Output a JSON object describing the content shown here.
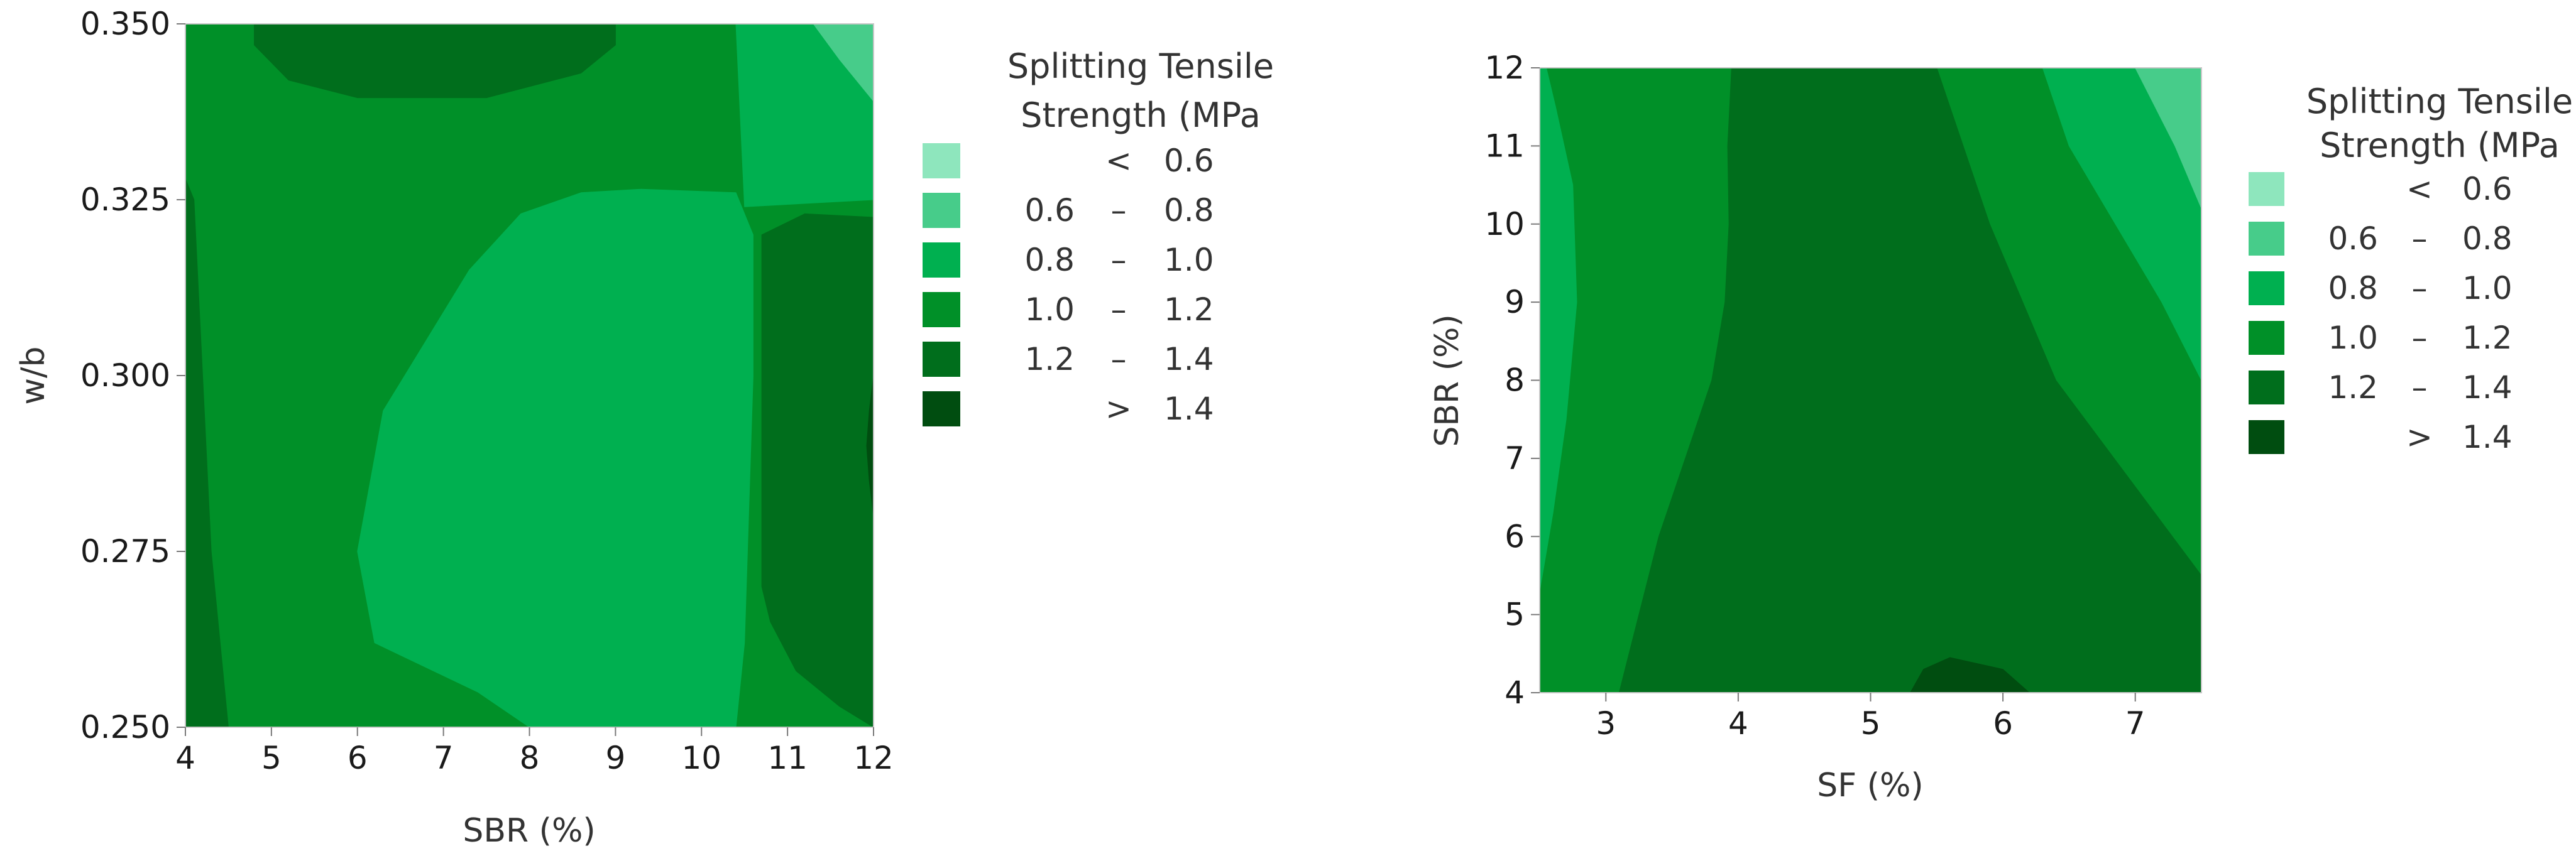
{
  "chart_data": [
    {
      "type": "contour",
      "xlabel": "SBR (%)",
      "ylabel": "w/b",
      "xlim": [
        4,
        12
      ],
      "ylim": [
        0.25,
        0.35
      ],
      "x_ticks": [
        "4",
        "5",
        "6",
        "7",
        "8",
        "9",
        "10",
        "11",
        "12"
      ],
      "y_ticks": [
        "0.250",
        "0.275",
        "0.300",
        "0.325",
        "0.350"
      ],
      "legend": {
        "title": [
          "Splitting Tensile",
          "Strength (MPa"
        ],
        "placement": "right",
        "items": [
          {
            "low": "",
            "sep": "<",
            "high": "0.6",
            "color": "#8ee6bd"
          },
          {
            "low": "0.6",
            "sep": "–",
            "high": "0.8",
            "color": "#47cc8a"
          },
          {
            "low": "0.8",
            "sep": "–",
            "high": "1.0",
            "color": "#00b050"
          },
          {
            "low": "1.0",
            "sep": "–",
            "high": "1.2",
            "color": "#009028"
          },
          {
            "low": "1.2",
            "sep": "–",
            "high": "1.4",
            "color": "#006e1c"
          },
          {
            "low": "",
            "sep": ">",
            "high": "1.4",
            "color": "#004d10"
          }
        ]
      },
      "regions": [
        {
          "level": "1.0-1.2",
          "color": "#009028",
          "points": [
            [
              4,
              0.25
            ],
            [
              12,
              0.25
            ],
            [
              12,
              0.35
            ],
            [
              4,
              0.35
            ]
          ]
        },
        {
          "level": "1.2-1.4",
          "color": "#006e1c",
          "points": [
            [
              4,
              0.25
            ],
            [
              4.5,
              0.25
            ],
            [
              4.3,
              0.275
            ],
            [
              4.2,
              0.3
            ],
            [
              4.1,
              0.325
            ],
            [
              4,
              0.328
            ]
          ]
        },
        {
          "level": "0.8-1.0",
          "color": "#00b050",
          "points": [
            [
              8,
              0.25
            ],
            [
              10.4,
              0.25
            ],
            [
              10.5,
              0.262
            ],
            [
              10.6,
              0.3
            ],
            [
              10.6,
              0.32
            ],
            [
              10.4,
              0.326
            ],
            [
              9.3,
              0.3265
            ],
            [
              8.6,
              0.326
            ],
            [
              7.9,
              0.323
            ],
            [
              7.3,
              0.315
            ],
            [
              6.7,
              0.303
            ],
            [
              6.3,
              0.295
            ],
            [
              6.0,
              0.275
            ],
            [
              6.2,
              0.262
            ],
            [
              7.4,
              0.255
            ]
          ]
        },
        {
          "level": "0.8-1.0",
          "color": "#00b050",
          "points": [
            [
              10.4,
              0.35
            ],
            [
              12,
              0.35
            ],
            [
              12,
              0.325
            ],
            [
              10.5,
              0.324
            ]
          ]
        },
        {
          "level": "1.2-1.4",
          "color": "#006e1c",
          "points": [
            [
              12,
              0.25
            ],
            [
              11.6,
              0.253
            ],
            [
              11.1,
              0.258
            ],
            [
              10.8,
              0.265
            ],
            [
              10.7,
              0.27
            ],
            [
              10.7,
              0.3
            ],
            [
              10.7,
              0.32
            ],
            [
              11.2,
              0.323
            ],
            [
              12,
              0.3225
            ]
          ]
        },
        {
          "level": "1.2-1.4",
          "color": "#006e1c",
          "points": [
            [
              4.8,
              0.35
            ],
            [
              4.8,
              0.347
            ],
            [
              5.2,
              0.342
            ],
            [
              6,
              0.3395
            ],
            [
              7.5,
              0.3395
            ],
            [
              8.6,
              0.343
            ],
            [
              9,
              0.347
            ],
            [
              9,
              0.35
            ]
          ]
        },
        {
          "level": "0.6-0.8",
          "color": "#47cc8a",
          "points": [
            [
              11.3,
              0.35
            ],
            [
              12,
              0.35
            ],
            [
              12,
              0.339
            ],
            [
              11.8,
              0.342
            ],
            [
              11.6,
              0.345
            ]
          ]
        },
        {
          "level": "1.4+",
          "color": "#004d10",
          "points": [
            [
              12,
              0.28
            ],
            [
              11.95,
              0.285
            ],
            [
              11.92,
              0.29
            ],
            [
              11.95,
              0.295
            ],
            [
              12,
              0.3
            ]
          ]
        }
      ]
    },
    {
      "type": "contour",
      "xlabel": "SF (%)",
      "ylabel": "SBR (%)",
      "xlim": [
        2.5,
        7.5
      ],
      "ylim": [
        4,
        12
      ],
      "x_ticks": [
        "3",
        "4",
        "5",
        "6",
        "7"
      ],
      "y_ticks": [
        "4",
        "5",
        "6",
        "7",
        "8",
        "9",
        "10",
        "11",
        "12"
      ],
      "legend": {
        "title": [
          "Splitting Tensile",
          "Strength (MPa"
        ],
        "placement": "right",
        "items": [
          {
            "low": "",
            "sep": "<",
            "high": "0.6",
            "color": "#8ee6bd"
          },
          {
            "low": "0.6",
            "sep": "–",
            "high": "0.8",
            "color": "#47cc8a"
          },
          {
            "low": "0.8",
            "sep": "–",
            "high": "1.0",
            "color": "#00b050"
          },
          {
            "low": "1.0",
            "sep": "–",
            "high": "1.2",
            "color": "#009028"
          },
          {
            "low": "1.2",
            "sep": "–",
            "high": "1.4",
            "color": "#006e1c"
          },
          {
            "low": "",
            "sep": ">",
            "high": "1.4",
            "color": "#004d10"
          }
        ]
      },
      "regions": [
        {
          "level": "1.0-1.2",
          "color": "#009028",
          "points": [
            [
              2.5,
              4
            ],
            [
              7.5,
              4
            ],
            [
              7.5,
              12
            ],
            [
              2.5,
              12
            ]
          ]
        },
        {
          "level": "0.8-1.0",
          "color": "#00b050",
          "points": [
            [
              2.5,
              12
            ],
            [
              2.5,
              5.3
            ],
            [
              2.6,
              6.3
            ],
            [
              2.7,
              7.5
            ],
            [
              2.78,
              9
            ],
            [
              2.75,
              10.5
            ],
            [
              2.62,
              11.5
            ],
            [
              2.55,
              12
            ]
          ]
        },
        {
          "level": "1.2-1.4",
          "color": "#006e1c",
          "points": [
            [
              3.1,
              4
            ],
            [
              7.5,
              4
            ],
            [
              7.5,
              5.5
            ],
            [
              6.4,
              8
            ],
            [
              5.9,
              10
            ],
            [
              5.5,
              12
            ],
            [
              3.95,
              12
            ],
            [
              3.92,
              11
            ],
            [
              3.93,
              10
            ],
            [
              3.9,
              9
            ],
            [
              3.8,
              8
            ],
            [
              3.6,
              7
            ],
            [
              3.4,
              6
            ],
            [
              3.25,
              5
            ]
          ]
        },
        {
          "level": "0.8-1.0",
          "color": "#00b050",
          "points": [
            [
              6.3,
              12
            ],
            [
              7.5,
              12
            ],
            [
              7.5,
              8
            ],
            [
              7.2,
              9
            ],
            [
              6.85,
              10
            ],
            [
              6.5,
              11
            ]
          ]
        },
        {
          "level": "0.6-0.8",
          "color": "#47cc8a",
          "points": [
            [
              7.0,
              12
            ],
            [
              7.5,
              12
            ],
            [
              7.5,
              10.2
            ],
            [
              7.3,
              11
            ]
          ]
        },
        {
          "level": "1.4+",
          "color": "#004d10",
          "points": [
            [
              5.3,
              4
            ],
            [
              6.2,
              4
            ],
            [
              6.0,
              4.3
            ],
            [
              5.6,
              4.45
            ],
            [
              5.4,
              4.3
            ]
          ]
        }
      ]
    }
  ]
}
